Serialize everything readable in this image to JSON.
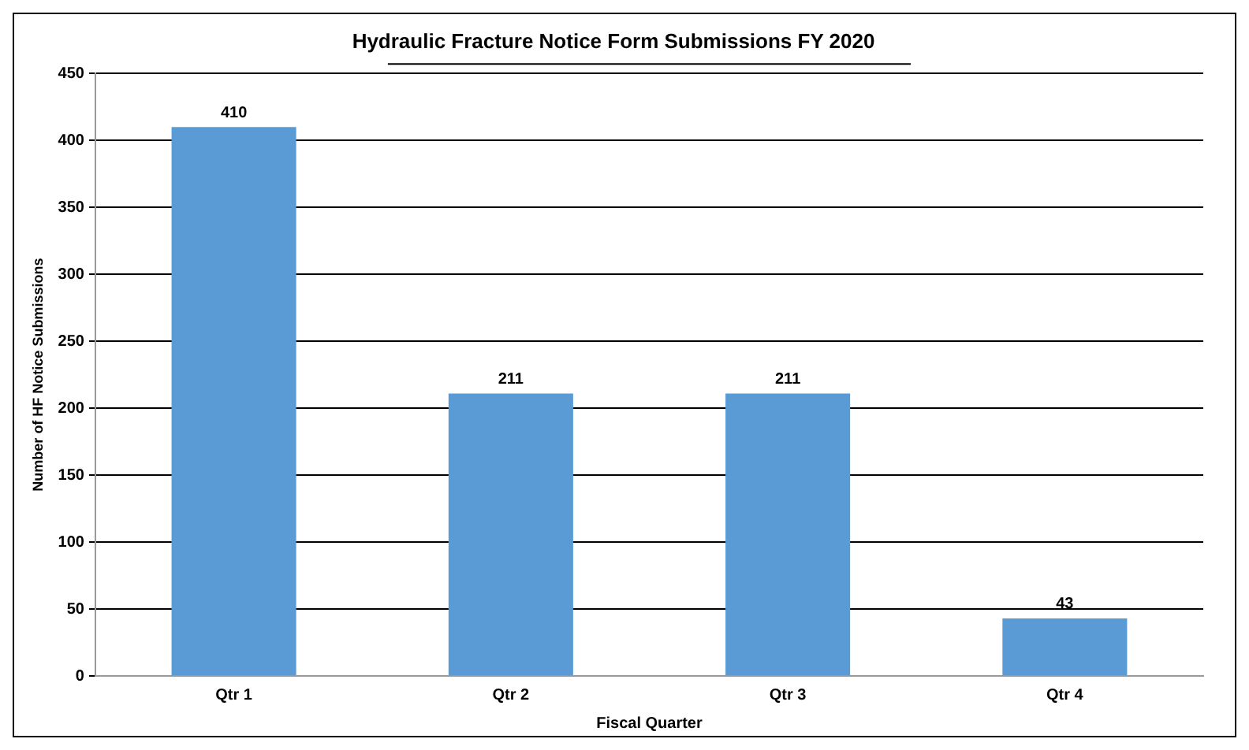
{
  "chart_data": {
    "type": "bar",
    "title": "Hydraulic Fracture Notice Form Submissions FY 2020",
    "xlabel": "Fiscal Quarter",
    "ylabel": "Number of HF Notice Submissions",
    "categories": [
      "Qtr 1",
      "Qtr 2",
      "Qtr 3",
      "Qtr 4"
    ],
    "values": [
      410,
      211,
      211,
      43
    ],
    "color": "#5b9bd5",
    "ylim": [
      0,
      450
    ],
    "yticks": [
      0,
      50,
      100,
      150,
      200,
      250,
      300,
      350,
      400,
      450
    ],
    "grid": "y",
    "data_labels": true,
    "legend": false
  }
}
